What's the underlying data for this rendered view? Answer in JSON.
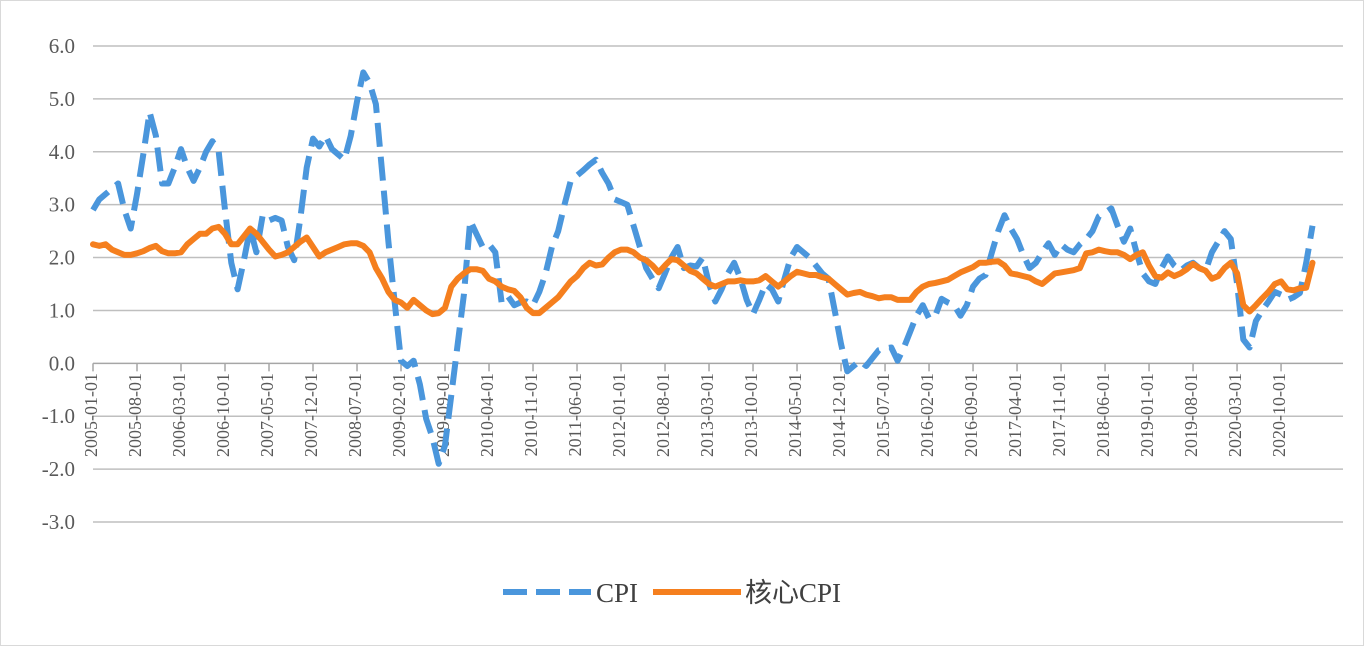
{
  "chart_data": {
    "type": "line",
    "title": "",
    "xlabel": "",
    "ylabel": "",
    "ylim": [
      -3.0,
      6.0
    ],
    "yticks": [
      "6.0",
      "5.0",
      "4.0",
      "3.0",
      "2.0",
      "1.0",
      "0.0",
      "-1.0",
      "-2.0",
      "-3.0"
    ],
    "ytick_values": [
      6,
      5,
      4,
      3,
      2,
      1,
      0,
      -1,
      -2,
      -3
    ],
    "xticks": [
      "2005-01-01",
      "2005-08-01",
      "2006-03-01",
      "2006-10-01",
      "2007-05-01",
      "2007-12-01",
      "2008-07-01",
      "2009-02-01",
      "2009-09-01",
      "2010-04-01",
      "2010-11-01",
      "2011-06-01",
      "2012-01-01",
      "2012-08-01",
      "2013-03-01",
      "2013-10-01",
      "2014-05-01",
      "2014-12-01",
      "2015-07-01",
      "2016-02-01",
      "2016-09-01",
      "2017-04-01",
      "2017-11-01",
      "2018-06-01",
      "2019-01-01",
      "2019-08-01",
      "2020-03-01",
      "2020-10-01"
    ],
    "grid": true,
    "legend_position": "bottom",
    "x": [
      "2005-01",
      "2005-02",
      "2005-03",
      "2005-04",
      "2005-05",
      "2005-06",
      "2005-07",
      "2005-08",
      "2005-09",
      "2005-10",
      "2005-11",
      "2005-12",
      "2006-01",
      "2006-02",
      "2006-03",
      "2006-04",
      "2006-05",
      "2006-06",
      "2006-07",
      "2006-08",
      "2006-09",
      "2006-10",
      "2006-11",
      "2006-12",
      "2007-01",
      "2007-02",
      "2007-03",
      "2007-04",
      "2007-05",
      "2007-06",
      "2007-07",
      "2007-08",
      "2007-09",
      "2007-10",
      "2007-11",
      "2007-12",
      "2008-01",
      "2008-02",
      "2008-03",
      "2008-04",
      "2008-05",
      "2008-06",
      "2008-07",
      "2008-08",
      "2008-09",
      "2008-10",
      "2008-11",
      "2008-12",
      "2009-01",
      "2009-02",
      "2009-03",
      "2009-04",
      "2009-05",
      "2009-06",
      "2009-07",
      "2009-08",
      "2009-09",
      "2009-10",
      "2009-11",
      "2009-12",
      "2010-01",
      "2010-02",
      "2010-03",
      "2010-04",
      "2010-05",
      "2010-06",
      "2010-07",
      "2010-08",
      "2010-09",
      "2010-10",
      "2010-11",
      "2010-12",
      "2011-01",
      "2011-02",
      "2011-03",
      "2011-04",
      "2011-05",
      "2011-06",
      "2011-07",
      "2011-08",
      "2011-09",
      "2011-10",
      "2011-11",
      "2011-12",
      "2012-01",
      "2012-02",
      "2012-03",
      "2012-04",
      "2012-05",
      "2012-06",
      "2012-07",
      "2012-08",
      "2012-09",
      "2012-10",
      "2012-11",
      "2012-12",
      "2013-01",
      "2013-02",
      "2013-03",
      "2013-04",
      "2013-05",
      "2013-06",
      "2013-07",
      "2013-08",
      "2013-09",
      "2013-10",
      "2013-11",
      "2013-12",
      "2014-01",
      "2014-02",
      "2014-03",
      "2014-04",
      "2014-05",
      "2014-06",
      "2014-07",
      "2014-08",
      "2014-09",
      "2014-10",
      "2014-11",
      "2014-12",
      "2015-01",
      "2015-02",
      "2015-03",
      "2015-04",
      "2015-05",
      "2015-06",
      "2015-07",
      "2015-08",
      "2015-09",
      "2015-10",
      "2015-11",
      "2015-12",
      "2016-01",
      "2016-02",
      "2016-03",
      "2016-04",
      "2016-05",
      "2016-06",
      "2016-07",
      "2016-08",
      "2016-09",
      "2016-10",
      "2016-11",
      "2016-12",
      "2017-01",
      "2017-02",
      "2017-03",
      "2017-04",
      "2017-05",
      "2017-06",
      "2017-07",
      "2017-08",
      "2017-09",
      "2017-10",
      "2017-11",
      "2017-12",
      "2018-01",
      "2018-02",
      "2018-03",
      "2018-04",
      "2018-05",
      "2018-06",
      "2018-07",
      "2018-08",
      "2018-09",
      "2018-10",
      "2018-11",
      "2018-12",
      "2019-01",
      "2019-02",
      "2019-03",
      "2019-04",
      "2019-05",
      "2019-06",
      "2019-07",
      "2019-08",
      "2019-09",
      "2019-10",
      "2019-11",
      "2019-12",
      "2020-01",
      "2020-02",
      "2020-03",
      "2020-04",
      "2020-05",
      "2020-06",
      "2020-07",
      "2020-08",
      "2020-09",
      "2020-10",
      "2020-11",
      "2020-12",
      "2021-01",
      "2021-02",
      "2021-03"
    ],
    "series": [
      {
        "name": "CPI",
        "color": "#4a96dc",
        "style": "dashed",
        "values": [
          2.9,
          3.1,
          3.2,
          3.3,
          3.4,
          2.9,
          2.55,
          3.2,
          3.95,
          4.75,
          4.3,
          3.4,
          3.4,
          3.7,
          4.05,
          3.7,
          3.45,
          3.7,
          4.0,
          4.2,
          4.0,
          2.9,
          1.9,
          1.4,
          1.95,
          2.55,
          2.1,
          2.8,
          2.7,
          2.75,
          2.7,
          2.2,
          1.95,
          2.75,
          3.7,
          4.25,
          4.1,
          4.3,
          4.05,
          3.95,
          3.85,
          4.3,
          4.95,
          5.5,
          5.3,
          4.9,
          3.6,
          2.3,
          1.15,
          0.05,
          -0.05,
          0.05,
          -0.4,
          -1.05,
          -1.4,
          -1.9,
          -1.55,
          -0.6,
          0.35,
          1.3,
          2.7,
          2.45,
          2.2,
          2.25,
          2.1,
          1.15,
          1.27,
          1.1,
          1.15,
          1.17,
          1.1,
          1.35,
          1.7,
          2.2,
          2.5,
          3.0,
          3.45,
          3.55,
          3.65,
          3.76,
          3.85,
          3.6,
          3.4,
          3.1,
          3.05,
          3.0,
          2.6,
          2.2,
          1.8,
          1.6,
          1.42,
          1.7,
          2.0,
          2.2,
          1.8,
          1.85,
          1.83,
          2.0,
          1.5,
          1.17,
          1.4,
          1.7,
          1.9,
          1.6,
          1.2,
          0.93,
          1.2,
          1.5,
          1.4,
          1.17,
          1.6,
          2.0,
          2.2,
          2.1,
          2.0,
          1.85,
          1.7,
          1.6,
          1.0,
          0.37,
          -0.15,
          -0.05,
          0.05,
          -0.05,
          0.1,
          0.25,
          0.28,
          0.3,
          0.05,
          0.3,
          0.6,
          0.9,
          1.1,
          0.85,
          0.9,
          1.22,
          1.15,
          1.1,
          0.9,
          1.1,
          1.45,
          1.6,
          1.67,
          2.1,
          2.5,
          2.8,
          2.55,
          2.35,
          2.05,
          1.8,
          1.9,
          2.1,
          2.27,
          2.05,
          2.25,
          2.15,
          2.1,
          2.25,
          2.35,
          2.5,
          2.78,
          2.85,
          2.93,
          2.6,
          2.3,
          2.55,
          2.1,
          1.7,
          1.55,
          1.5,
          1.8,
          2.02,
          1.85,
          1.75,
          1.85,
          1.9,
          1.8,
          1.75,
          2.1,
          2.3,
          2.5,
          2.35,
          1.5,
          0.45,
          0.3,
          0.8,
          1.0,
          1.17,
          1.35,
          1.3,
          1.2,
          1.25,
          1.33,
          1.9,
          2.6
        ]
      },
      {
        "name": "核心CPI",
        "color": "#f57f1e",
        "style": "solid",
        "values": [
          2.25,
          2.22,
          2.25,
          2.15,
          2.1,
          2.05,
          2.05,
          2.08,
          2.12,
          2.18,
          2.22,
          2.12,
          2.08,
          2.08,
          2.1,
          2.25,
          2.35,
          2.45,
          2.45,
          2.55,
          2.58,
          2.45,
          2.25,
          2.25,
          2.4,
          2.55,
          2.45,
          2.3,
          2.15,
          2.02,
          2.05,
          2.1,
          2.2,
          2.3,
          2.38,
          2.2,
          2.02,
          2.1,
          2.15,
          2.2,
          2.25,
          2.27,
          2.27,
          2.22,
          2.1,
          1.8,
          1.6,
          1.35,
          1.2,
          1.15,
          1.05,
          1.2,
          1.1,
          1.0,
          0.93,
          0.95,
          1.05,
          1.45,
          1.6,
          1.7,
          1.78,
          1.78,
          1.75,
          1.6,
          1.55,
          1.45,
          1.4,
          1.37,
          1.25,
          1.05,
          0.95,
          0.95,
          1.05,
          1.15,
          1.25,
          1.4,
          1.55,
          1.65,
          1.8,
          1.9,
          1.85,
          1.87,
          2.0,
          2.1,
          2.15,
          2.15,
          2.1,
          2.0,
          1.95,
          1.85,
          1.72,
          1.85,
          1.97,
          1.95,
          1.85,
          1.75,
          1.7,
          1.6,
          1.5,
          1.45,
          1.5,
          1.55,
          1.55,
          1.57,
          1.55,
          1.55,
          1.57,
          1.65,
          1.55,
          1.45,
          1.55,
          1.65,
          1.73,
          1.7,
          1.67,
          1.67,
          1.63,
          1.6,
          1.5,
          1.4,
          1.3,
          1.33,
          1.35,
          1.3,
          1.27,
          1.23,
          1.25,
          1.25,
          1.2,
          1.2,
          1.2,
          1.35,
          1.45,
          1.5,
          1.52,
          1.55,
          1.58,
          1.65,
          1.72,
          1.77,
          1.82,
          1.9,
          1.9,
          1.92,
          1.93,
          1.85,
          1.7,
          1.68,
          1.65,
          1.62,
          1.55,
          1.5,
          1.6,
          1.7,
          1.72,
          1.74,
          1.76,
          1.8,
          2.08,
          2.1,
          2.15,
          2.12,
          2.1,
          2.1,
          2.05,
          1.97,
          2.05,
          2.1,
          1.85,
          1.65,
          1.62,
          1.72,
          1.65,
          1.7,
          1.78,
          1.88,
          1.8,
          1.75,
          1.6,
          1.65,
          1.8,
          1.9,
          1.7,
          1.1,
          0.98,
          1.1,
          1.23,
          1.35,
          1.5,
          1.55,
          1.4,
          1.38,
          1.42,
          1.43,
          1.9
        ]
      }
    ]
  }
}
